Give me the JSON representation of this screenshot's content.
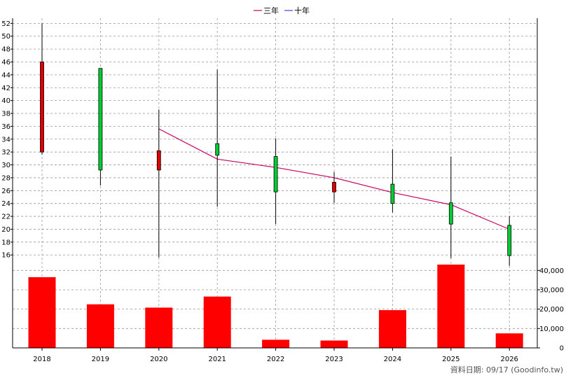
{
  "legend": {
    "three_year": "三年",
    "ten_year": "十年"
  },
  "footer": "資料日期: 09/17 (Goodinfo.tw)",
  "colors": {
    "up": "#e00000",
    "down": "#00cc33",
    "ma3": "#cc0066",
    "ma10": "#6633cc",
    "volume": "#ff0000",
    "grid": "#999999"
  },
  "chart_data": [
    {
      "type": "candlestick",
      "categories": [
        "2018",
        "2019",
        "2020",
        "2021",
        "2022",
        "2023",
        "2024",
        "2025",
        "2026"
      ],
      "ylim": [
        14.5,
        52.8
      ],
      "yticks": [
        16,
        18,
        20,
        22,
        24,
        26,
        28,
        30,
        32,
        34,
        36,
        38,
        40,
        42,
        44,
        46,
        48,
        50,
        52
      ],
      "grid": true,
      "candles": [
        {
          "open": 32.0,
          "close": 46.0,
          "high": 52.0,
          "low": 31.6,
          "color": "up"
        },
        {
          "open": 45.0,
          "close": 29.2,
          "high": 45.0,
          "low": 26.8,
          "color": "down"
        },
        {
          "open": 29.2,
          "close": 32.2,
          "high": 38.6,
          "low": 15.6,
          "color": "up"
        },
        {
          "open": 33.3,
          "close": 31.5,
          "high": 44.8,
          "low": 23.5,
          "color": "down"
        },
        {
          "open": 31.3,
          "close": 25.8,
          "high": 34.1,
          "low": 20.8,
          "color": "down"
        },
        {
          "open": 25.8,
          "close": 27.3,
          "high": 28.9,
          "low": 24.1,
          "color": "up"
        },
        {
          "open": 27.0,
          "close": 24.0,
          "high": 32.4,
          "low": 22.6,
          "color": "down"
        },
        {
          "open": 24.1,
          "close": 20.8,
          "high": 31.3,
          "low": 15.5,
          "color": "down"
        },
        {
          "open": 20.6,
          "close": 15.9,
          "high": 22.0,
          "low": 14.3,
          "color": "down"
        }
      ],
      "series": [
        {
          "name": "三年",
          "values": [
            null,
            null,
            35.6,
            30.9,
            29.6,
            28.0,
            25.7,
            23.8,
            20.0
          ]
        },
        {
          "name": "十年",
          "values": [
            null,
            null,
            null,
            null,
            null,
            null,
            null,
            null,
            null
          ]
        }
      ],
      "legend_position": "top-center"
    },
    {
      "type": "bar",
      "categories": [
        "2018",
        "2019",
        "2020",
        "2021",
        "2022",
        "2023",
        "2024",
        "2025",
        "2026"
      ],
      "values": [
        36500,
        22500,
        20800,
        26500,
        4200,
        3800,
        19500,
        43000,
        7500
      ],
      "ylim": [
        0,
        43000
      ],
      "yticks": [
        0,
        10000,
        20000,
        30000,
        40000
      ],
      "ytick_labels": [
        "0",
        "10,000",
        "20,000",
        "30,000",
        "40,000"
      ],
      "grid": true
    }
  ]
}
